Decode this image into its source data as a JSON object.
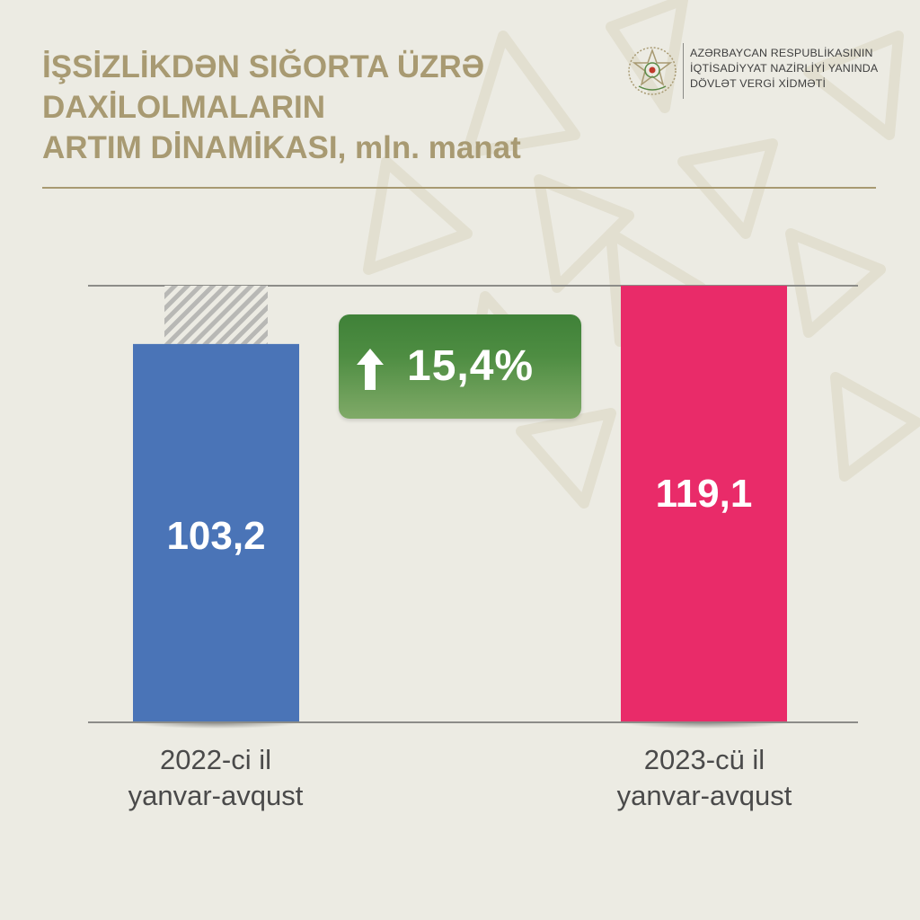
{
  "title": {
    "line1": "İŞSİZLİKDƏN SIĞORTA ÜZRƏ",
    "line2": "DAXİLOLMALARIN",
    "line3": "ARTIM DİNAMİKASI,",
    "unit": "mln. manat"
  },
  "organization": {
    "line1": "AZƏRBAYCAN RESPUBLİKASININ",
    "line2": "İQTİSADİYYAT NAZİRLİYİ YANINDA",
    "line3": "DÖVLƏT VERGİ XİDMƏTİ"
  },
  "growth_badge": {
    "text": "15,4%",
    "icon": "arrow-up-icon",
    "color": "#4e8d42"
  },
  "colors": {
    "background": "#ecebe3",
    "title": "#a89a72",
    "bar_2022": "#4a74b7",
    "bar_2023": "#e92b69",
    "hatch": "#b8b8b5"
  },
  "chart_data": {
    "type": "bar",
    "categories": [
      [
        "2022-ci il",
        "yanvar-avqust"
      ],
      [
        "2023-cü il",
        "yanvar-avqust"
      ]
    ],
    "values": [
      103.2,
      119.1
    ],
    "value_labels": [
      "103,2",
      "119,1"
    ],
    "bar_colors": [
      "#4a74b7",
      "#e92b69"
    ],
    "difference_hatch_on_first_bar": true,
    "ylim": [
      0,
      119.1
    ],
    "grid": "top and bottom rules",
    "xlabel": "",
    "ylabel": ""
  }
}
